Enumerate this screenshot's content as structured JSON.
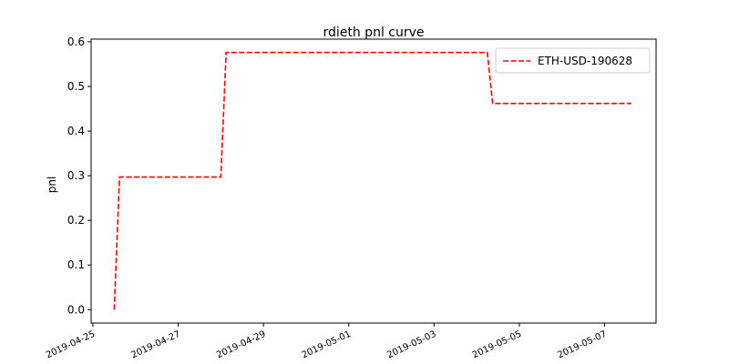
{
  "chart_data": {
    "type": "line",
    "title": "rdieth pnl curve",
    "xlabel": "",
    "ylabel": "pnl",
    "x": [
      "2019-04-25 12:00",
      "2019-04-25 15:00",
      "2019-04-28 00:00",
      "2019-04-28 03:00",
      "2019-05-04 06:00",
      "2019-05-04 09:00",
      "2019-05-07 15:00"
    ],
    "series": [
      {
        "name": "ETH-USD-190628",
        "color": "#ff0000",
        "style": "dashed",
        "values": [
          0.0,
          0.297,
          0.297,
          0.576,
          0.576,
          0.462,
          0.462
        ]
      }
    ],
    "xlim": [
      "2019-04-24 23:00",
      "2019-05-08 05:00"
    ],
    "ylim": [
      -0.03,
      0.606
    ],
    "yticks": [
      0.0,
      0.1,
      0.2,
      0.3,
      0.4,
      0.5,
      0.6
    ],
    "ytick_labels": [
      "0.0",
      "0.1",
      "0.2",
      "0.3",
      "0.4",
      "0.5",
      "0.6"
    ],
    "xticks": [
      "2019-04-25",
      "2019-04-27",
      "2019-04-29",
      "2019-05-01",
      "2019-05-03",
      "2019-05-05",
      "2019-05-07"
    ],
    "grid": false,
    "legend_position": "top-right"
  }
}
